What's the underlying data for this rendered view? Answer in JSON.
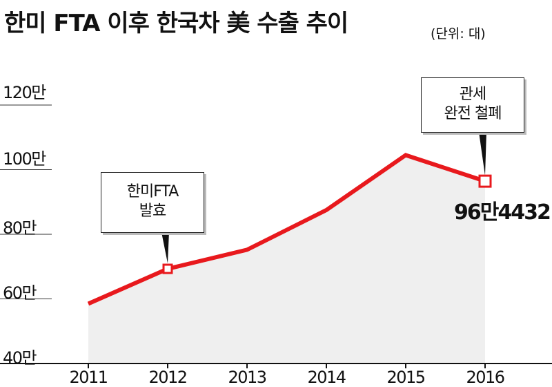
{
  "header": {
    "title": "한미 FTA 이후 한국차 美 수출 추이",
    "unit": "(단위: 대)"
  },
  "chart_data": {
    "type": "area",
    "title": "한미 FTA 이후 한국차 美 수출 추이",
    "unit": "(단위: 대)",
    "categories": [
      "2011",
      "2012",
      "2013",
      "2014",
      "2015",
      "2016"
    ],
    "values": [
      585000,
      693000,
      752000,
      875000,
      1045000,
      964432
    ],
    "ylim": [
      400000,
      1200000
    ],
    "y_ticks": [
      {
        "value": 400000,
        "label": "40만"
      },
      {
        "value": 600000,
        "label": "60만"
      },
      {
        "value": 800000,
        "label": "80만"
      },
      {
        "value": 1000000,
        "label": "100만"
      },
      {
        "value": 1200000,
        "label": "120만"
      }
    ],
    "annotations": [
      {
        "category": "2012",
        "lines": [
          "한미FTA",
          "발효"
        ]
      },
      {
        "category": "2016",
        "lines": [
          "관세",
          "완전 철폐"
        ],
        "value_label": "96만4432"
      }
    ],
    "xlabel": "",
    "ylabel": "",
    "grid": false,
    "colors": {
      "line": "#e8191d",
      "area": "#efefef",
      "axis": "#111111"
    }
  }
}
